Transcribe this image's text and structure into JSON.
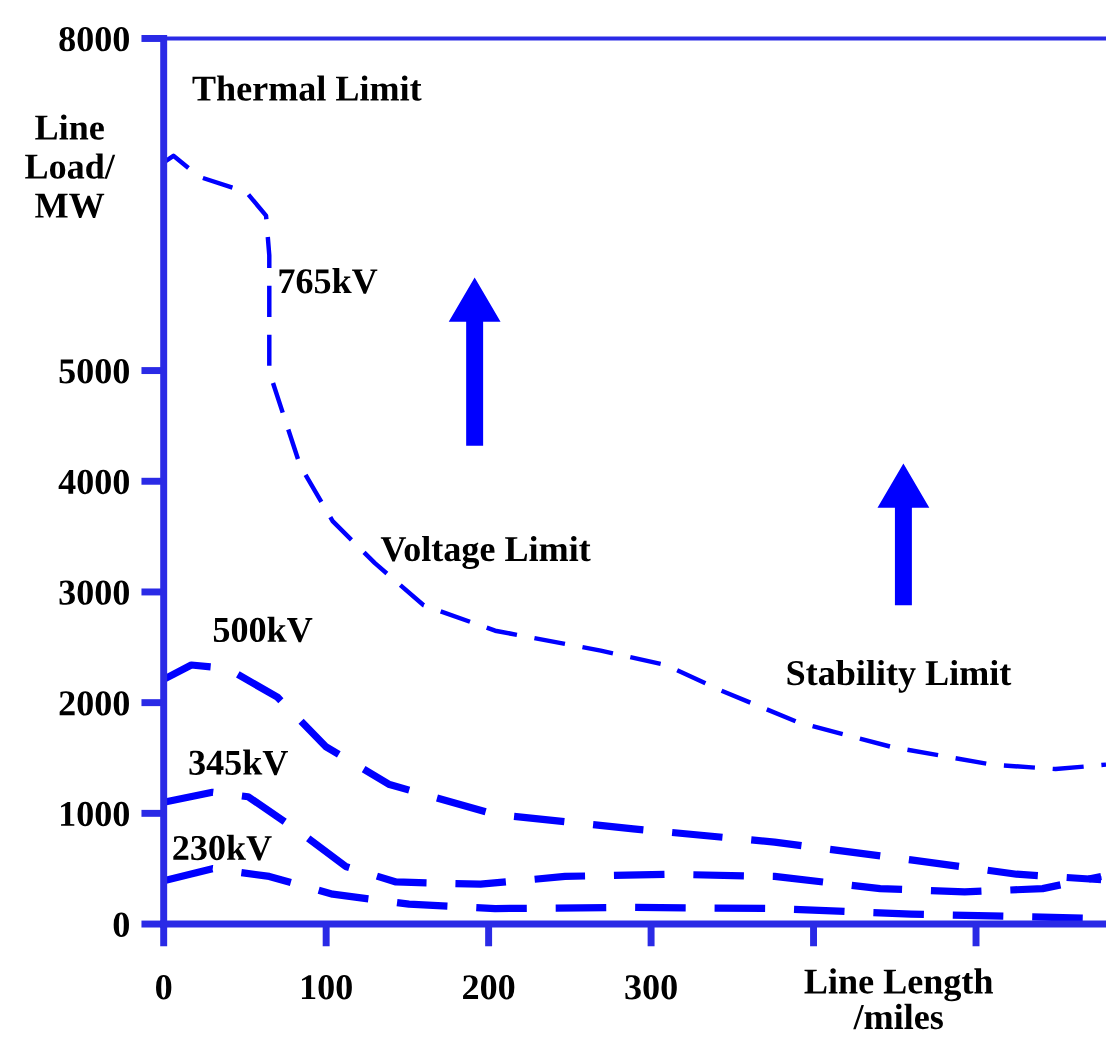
{
  "chart_data": {
    "type": "line",
    "xlabel": "Line Length\n/miles",
    "ylabel": "Line\nLoad/\nMW",
    "annotations": [
      "Thermal Limit",
      "Voltage Limit",
      "Stability Limit"
    ],
    "xlim": [
      0,
      580
    ],
    "ylim": [
      0,
      8000
    ],
    "xticks": [
      0,
      100,
      200,
      300,
      {
        "value": 400,
        "label": null
      },
      {
        "value": 500,
        "label": null
      }
    ],
    "yticks": [
      0,
      1000,
      2000,
      3000,
      4000,
      5000,
      8000
    ],
    "grid": false,
    "legend": false,
    "marker": "none",
    "line_style": "dashed",
    "series": [
      {
        "name": "765kV",
        "color": "#0000ff",
        "x": [
          0,
          6,
          22,
          51,
          63,
          65,
          65,
          84,
          104,
          130,
          160,
          204,
          269,
          309,
          343,
          391,
          448,
          510,
          549,
          580
        ],
        "values": [
          6880,
          6940,
          6750,
          6610,
          6400,
          6040,
          4990,
          4140,
          3640,
          3260,
          2880,
          2650,
          2470,
          2340,
          2110,
          1820,
          1600,
          1440,
          1400,
          1440
        ]
      },
      {
        "name": "500kV",
        "color": "#0000ff",
        "x": [
          0,
          17,
          39,
          70,
          100,
          139,
          204,
          289,
          376,
          460,
          525,
          577
        ],
        "values": [
          2210,
          2340,
          2310,
          2050,
          1600,
          1260,
          990,
          860,
          740,
          580,
          450,
          400
        ]
      },
      {
        "name": "345kV",
        "color": "#0000ff",
        "x": [
          0,
          30,
          52,
          82,
          112,
          143,
          195,
          247,
          311,
          376,
          441,
          493,
          541,
          577
        ],
        "values": [
          1100,
          1190,
          1150,
          850,
          520,
          380,
          360,
          430,
          450,
          430,
          320,
          290,
          320,
          430
        ]
      },
      {
        "name": "230kV",
        "color": "#0000ff",
        "x": [
          0,
          30,
          65,
          104,
          151,
          204,
          289,
          376,
          460,
          577
        ],
        "values": [
          390,
          500,
          430,
          270,
          180,
          140,
          150,
          140,
          90,
          50
        ]
      }
    ]
  }
}
